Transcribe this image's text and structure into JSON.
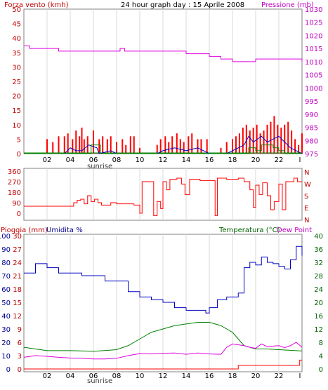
{
  "header": {
    "left_label": "Forza vento (kmh)",
    "center_title": "24 hour graph day : 15 Aprile 2008",
    "right_label": "Pressione (mb)"
  },
  "wind_dir_axis": [
    "N",
    "W",
    "S",
    "E",
    "N"
  ],
  "bottom_header": {
    "rain_label": "Pioggia (mm)",
    "humidity_label": "Umidita %",
    "temp_label": "Temperatura (°C)",
    "dew_label": "Dew Point"
  },
  "x_axis": {
    "ticks": [
      "02",
      "04",
      "06",
      "08",
      "10",
      "12",
      "14",
      "16",
      "18",
      "20",
      "22",
      "I"
    ],
    "sunrise_label": "sunrise"
  },
  "colors": {
    "frame": "#808080",
    "grid": "#d8d8d8",
    "wind": "#ff0000",
    "gust_avg": "#0000c0",
    "green": "#008000",
    "pressure": "#e000e0",
    "axis_red": "#c00000",
    "axis_magenta": "#c000c0",
    "axis_blue": "#000090",
    "axis_green": "#006000"
  },
  "chart_data": [
    {
      "type": "line",
      "title": "24 hour graph day : 15 Aprile 2008",
      "ylabel": "Forza vento (kmh)",
      "ylabel_right": "Pressione (mb)",
      "ylim": [
        0,
        50
      ],
      "ylim_right": [
        975,
        1030
      ],
      "y_ticks": [
        0,
        5,
        10,
        15,
        20,
        25,
        30,
        35,
        40,
        45,
        50
      ],
      "y_ticks_right": [
        975,
        980,
        985,
        990,
        995,
        1000,
        1005,
        1010,
        1015,
        1020,
        1025,
        1030
      ],
      "x_hours": [
        0,
        24
      ],
      "series": [
        {
          "name": "Pressione (mb)",
          "axis": "right",
          "points": [
            [
              0,
              1016
            ],
            [
              0.5,
              1015
            ],
            [
              2.5,
              1015
            ],
            [
              3,
              1014
            ],
            [
              8,
              1014
            ],
            [
              8.3,
              1015
            ],
            [
              8.7,
              1014
            ],
            [
              13,
              1014
            ],
            [
              14,
              1013
            ],
            [
              16,
              1012
            ],
            [
              17,
              1011
            ],
            [
              18,
              1010
            ],
            [
              20,
              1011
            ],
            [
              22,
              1011
            ],
            [
              24,
              1010
            ]
          ]
        },
        {
          "name": "wind-average",
          "axis": "left",
          "points": [
            [
              0,
              0
            ],
            [
              3.5,
              0
            ],
            [
              4,
              2
            ],
            [
              4.5,
              1
            ],
            [
              5,
              1
            ],
            [
              5.6,
              3
            ],
            [
              6.3,
              2
            ],
            [
              6.5,
              0
            ],
            [
              7.5,
              1
            ],
            [
              8,
              0
            ],
            [
              11.5,
              0
            ],
            [
              12,
              1
            ],
            [
              13,
              2
            ],
            [
              14,
              1
            ],
            [
              15,
              2
            ],
            [
              16,
              0
            ],
            [
              17.5,
              0
            ],
            [
              18,
              1
            ],
            [
              19,
              3
            ],
            [
              19.4,
              6
            ],
            [
              19.8,
              4
            ],
            [
              20.5,
              6
            ],
            [
              21,
              4
            ],
            [
              21.5,
              5
            ],
            [
              22,
              6
            ],
            [
              22.5,
              4
            ],
            [
              23,
              2
            ],
            [
              24,
              0
            ]
          ]
        },
        {
          "name": "wind-green",
          "axis": "left",
          "points": [
            [
              0,
              0
            ],
            [
              5.5,
              0
            ],
            [
              5.8,
              3
            ],
            [
              6.3,
              3
            ],
            [
              6.6,
              0
            ],
            [
              19,
              0
            ],
            [
              19.4,
              2
            ],
            [
              20,
              1
            ],
            [
              20.5,
              3
            ],
            [
              21,
              3
            ],
            [
              21.5,
              2
            ],
            [
              22,
              1
            ],
            [
              22.5,
              0
            ],
            [
              24,
              0
            ]
          ]
        }
      ],
      "bars": {
        "name": "gust",
        "color": "#ff0000",
        "points": [
          [
            2.0,
            5
          ],
          [
            2.5,
            4
          ],
          [
            3.0,
            6
          ],
          [
            3.5,
            6
          ],
          [
            3.8,
            7
          ],
          [
            4.2,
            5
          ],
          [
            4.5,
            8
          ],
          [
            4.8,
            6
          ],
          [
            5.0,
            9
          ],
          [
            5.2,
            5
          ],
          [
            5.5,
            6
          ],
          [
            6.0,
            8
          ],
          [
            6.5,
            5
          ],
          [
            6.8,
            6
          ],
          [
            7.2,
            5
          ],
          [
            7.5,
            6
          ],
          [
            8.0,
            4
          ],
          [
            8.5,
            5
          ],
          [
            8.8,
            3
          ],
          [
            9.2,
            6
          ],
          [
            9.5,
            6
          ],
          [
            10.0,
            2
          ],
          [
            11.5,
            3
          ],
          [
            11.8,
            5
          ],
          [
            12.2,
            6
          ],
          [
            12.5,
            4
          ],
          [
            12.8,
            6
          ],
          [
            13.2,
            7
          ],
          [
            13.5,
            5
          ],
          [
            13.8,
            4
          ],
          [
            14.2,
            6
          ],
          [
            14.5,
            7
          ],
          [
            15.0,
            5
          ],
          [
            15.3,
            5
          ],
          [
            15.8,
            5
          ],
          [
            17.0,
            2
          ],
          [
            17.5,
            4
          ],
          [
            18.0,
            5
          ],
          [
            18.3,
            6
          ],
          [
            18.6,
            7
          ],
          [
            18.9,
            9
          ],
          [
            19.2,
            10
          ],
          [
            19.5,
            8
          ],
          [
            19.8,
            9
          ],
          [
            20.1,
            10
          ],
          [
            20.4,
            7
          ],
          [
            20.7,
            8
          ],
          [
            21.0,
            10
          ],
          [
            21.3,
            11
          ],
          [
            21.6,
            13
          ],
          [
            21.9,
            10
          ],
          [
            22.2,
            9
          ],
          [
            22.5,
            10
          ],
          [
            22.8,
            11
          ],
          [
            23.1,
            8
          ],
          [
            23.4,
            5
          ],
          [
            23.7,
            3
          ],
          [
            24.0,
            7
          ]
        ]
      }
    },
    {
      "type": "line",
      "ylabel": "wind direction",
      "ylim": [
        0,
        360
      ],
      "y_ticks": [
        0,
        90,
        180,
        270,
        360
      ],
      "series": [
        {
          "name": "direction",
          "points": [
            [
              0,
              60
            ],
            [
              4,
              60
            ],
            [
              4.3,
              90
            ],
            [
              4.6,
              110
            ],
            [
              4.9,
              120
            ],
            [
              5.2,
              80
            ],
            [
              5.5,
              150
            ],
            [
              5.8,
              100
            ],
            [
              6.1,
              120
            ],
            [
              6.4,
              90
            ],
            [
              6.7,
              70
            ],
            [
              7.2,
              70
            ],
            [
              7.5,
              90
            ],
            [
              8,
              80
            ],
            [
              9,
              80
            ],
            [
              9.5,
              70
            ],
            [
              10,
              0
            ],
            [
              10.2,
              270
            ],
            [
              11,
              270
            ],
            [
              11.2,
              -20
            ],
            [
              11.5,
              100
            ],
            [
              11.8,
              40
            ],
            [
              12,
              270
            ],
            [
              12.3,
              200
            ],
            [
              12.6,
              290
            ],
            [
              13,
              290
            ],
            [
              13.2,
              300
            ],
            [
              13.6,
              250
            ],
            [
              13.9,
              160
            ],
            [
              14.3,
              290
            ],
            [
              15,
              290
            ],
            [
              15.2,
              280
            ],
            [
              16,
              280
            ],
            [
              16.5,
              -20
            ],
            [
              16.7,
              300
            ],
            [
              17.2,
              300
            ],
            [
              17.5,
              290
            ],
            [
              18.2,
              290
            ],
            [
              18.5,
              300
            ],
            [
              19,
              270
            ],
            [
              19.5,
              200
            ],
            [
              19.8,
              50
            ],
            [
              20,
              240
            ],
            [
              20.3,
              160
            ],
            [
              20.6,
              260
            ],
            [
              21,
              150
            ],
            [
              21.3,
              30
            ],
            [
              21.6,
              100
            ],
            [
              22,
              250
            ],
            [
              22.3,
              30
            ],
            [
              22.6,
              270
            ],
            [
              23,
              270
            ],
            [
              23.3,
              300
            ],
            [
              23.6,
              270
            ],
            [
              24,
              270
            ]
          ]
        }
      ]
    },
    {
      "type": "line",
      "ylabel": "Pioggia (mm) / Umidita %",
      "ylabel_right": "Temperatura (°C) / Dew Point",
      "ylim_rain": [
        0,
        30
      ],
      "ylim_humidity": [
        0,
        100
      ],
      "ylim_temp": [
        0,
        40
      ],
      "y_ticks_rain": [
        0,
        3,
        6,
        9,
        12,
        15,
        18,
        21,
        24,
        27,
        30
      ],
      "y_ticks_humidity": [
        0,
        10,
        20,
        30,
        40,
        50,
        60,
        70,
        80,
        90,
        100
      ],
      "y_ticks_temp": [
        0,
        4,
        8,
        12,
        16,
        20,
        24,
        28,
        32,
        36,
        40
      ],
      "series": [
        {
          "name": "Umidita %",
          "axis": "humidity",
          "points": [
            [
              0,
              72
            ],
            [
              1,
              79
            ],
            [
              2,
              76
            ],
            [
              3,
              72
            ],
            [
              5,
              70
            ],
            [
              7,
              66
            ],
            [
              9,
              58
            ],
            [
              10,
              54
            ],
            [
              11,
              52
            ],
            [
              12,
              50
            ],
            [
              13,
              46
            ],
            [
              14,
              44
            ],
            [
              15,
              44
            ],
            [
              15.7,
              42
            ],
            [
              16,
              46
            ],
            [
              16.7,
              52
            ],
            [
              17.5,
              54
            ],
            [
              18.5,
              57
            ],
            [
              19,
              76
            ],
            [
              19.5,
              80
            ],
            [
              20,
              78
            ],
            [
              20.5,
              84
            ],
            [
              21,
              80
            ],
            [
              21.5,
              79
            ],
            [
              22,
              77
            ],
            [
              22.5,
              75
            ],
            [
              23,
              82
            ],
            [
              23.5,
              92
            ],
            [
              24,
              85
            ]
          ]
        },
        {
          "name": "Temperatura (°C)",
          "axis": "temp",
          "points": [
            [
              0,
              6.5
            ],
            [
              2,
              5.5
            ],
            [
              4,
              5.5
            ],
            [
              6,
              5.3
            ],
            [
              8,
              5.8
            ],
            [
              9,
              7
            ],
            [
              10,
              9
            ],
            [
              11,
              11
            ],
            [
              12,
              12
            ],
            [
              13,
              13
            ],
            [
              14,
              13.5
            ],
            [
              15,
              14
            ],
            [
              16,
              14
            ],
            [
              17,
              13
            ],
            [
              18,
              11
            ],
            [
              18.5,
              9
            ],
            [
              19,
              7
            ],
            [
              20,
              6
            ],
            [
              21,
              6
            ],
            [
              22,
              5.8
            ],
            [
              23,
              5.6
            ],
            [
              24,
              5.4
            ]
          ]
        },
        {
          "name": "Dew Point",
          "axis": "temp",
          "points": [
            [
              0,
              3.5
            ],
            [
              1,
              4
            ],
            [
              2,
              3.8
            ],
            [
              3,
              3.5
            ],
            [
              4,
              3.3
            ],
            [
              5,
              3.2
            ],
            [
              6,
              3
            ],
            [
              7,
              3
            ],
            [
              8,
              3.2
            ],
            [
              9,
              4
            ],
            [
              10,
              4.6
            ],
            [
              11,
              4.5
            ],
            [
              12,
              4.7
            ],
            [
              13,
              4.8
            ],
            [
              14,
              4.4
            ],
            [
              15,
              4.8
            ],
            [
              16,
              4.5
            ],
            [
              17,
              4.4
            ],
            [
              17.5,
              6.5
            ],
            [
              18,
              7.5
            ],
            [
              19,
              7
            ],
            [
              19.5,
              6.5
            ],
            [
              20,
              6.2
            ],
            [
              20.5,
              7.5
            ],
            [
              21,
              6.7
            ],
            [
              22,
              7
            ],
            [
              22.5,
              6.4
            ],
            [
              23,
              7
            ],
            [
              23.5,
              8
            ],
            [
              24,
              6.5
            ]
          ]
        },
        {
          "name": "Pioggia (mm)",
          "axis": "rain",
          "points": [
            [
              0,
              0
            ],
            [
              18.5,
              0
            ],
            [
              18.5,
              0.8
            ],
            [
              23.8,
              0.8
            ],
            [
              23.8,
              2
            ],
            [
              24,
              2
            ]
          ]
        }
      ]
    }
  ]
}
